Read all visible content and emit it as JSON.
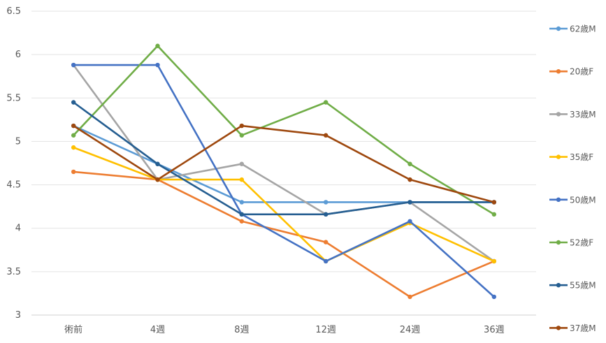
{
  "chart_data": {
    "type": "line",
    "categories": [
      "術前",
      "4週",
      "8週",
      "12週",
      "24週",
      "36週"
    ],
    "ylim": [
      3,
      6.5
    ],
    "yticks": [
      3,
      3.5,
      4,
      4.5,
      5,
      5.5,
      6,
      6.5
    ],
    "grid": true,
    "legend": "right",
    "series": [
      {
        "name": "62歳M",
        "color": "#5B9BD5",
        "values": [
          5.18,
          4.74,
          4.3,
          4.3,
          4.3,
          4.3
        ]
      },
      {
        "name": "20歳F",
        "color": "#ED7D31",
        "values": [
          4.65,
          4.56,
          4.08,
          3.84,
          3.21,
          3.62
        ]
      },
      {
        "name": "33歳M",
        "color": "#A5A5A5",
        "values": [
          5.88,
          4.56,
          4.74,
          4.16,
          4.3,
          3.62
        ]
      },
      {
        "name": "35歳F",
        "color": "#FFC000",
        "values": [
          4.93,
          4.56,
          4.56,
          3.62,
          4.06,
          3.62
        ]
      },
      {
        "name": "50歳M",
        "color": "#4472C4",
        "values": [
          5.88,
          5.88,
          4.16,
          3.62,
          4.08,
          3.21
        ]
      },
      {
        "name": "52歳F",
        "color": "#70AD47",
        "values": [
          5.07,
          6.1,
          5.07,
          5.45,
          4.74,
          4.16
        ]
      },
      {
        "name": "55歳M",
        "color": "#255E91",
        "values": [
          5.45,
          4.74,
          4.16,
          4.16,
          4.3,
          4.3
        ]
      },
      {
        "name": "37歳M",
        "color": "#9E480E",
        "values": [
          5.18,
          4.56,
          5.18,
          5.07,
          4.56,
          4.3
        ]
      }
    ]
  }
}
